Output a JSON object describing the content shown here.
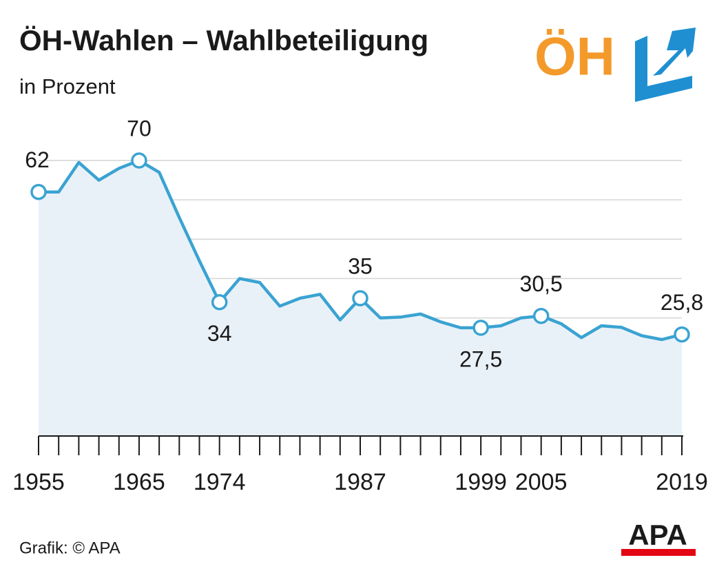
{
  "chart_data": {
    "type": "line",
    "title": "ÖH-Wahlen – Wahlbeteiligung",
    "subtitle": "in Prozent",
    "source": "Grafik: © APA",
    "logo_text": "ÖH",
    "brand": "APA",
    "categories": [
      "1955",
      null,
      null,
      null,
      null,
      "1965",
      null,
      null,
      null,
      "1974",
      null,
      null,
      null,
      null,
      null,
      null,
      "1987",
      null,
      null,
      null,
      null,
      null,
      "1999",
      null,
      null,
      "2005",
      null,
      null,
      null,
      null,
      null,
      null,
      "2019"
    ],
    "series": [
      {
        "name": "Wahlbeteiligung",
        "color": "#3aa3d2",
        "values": [
          62,
          62,
          69.5,
          65,
          68,
          70,
          67,
          55.5,
          44.5,
          34,
          40,
          39,
          33,
          35,
          36,
          29.5,
          35,
          30,
          30.2,
          31,
          29,
          27.5,
          27.5,
          28,
          30,
          30.5,
          28.5,
          25,
          28,
          27.6,
          25.5,
          24.5,
          25.8
        ],
        "value_labels": [
          "62",
          null,
          null,
          null,
          null,
          "70",
          null,
          null,
          null,
          "34",
          null,
          null,
          null,
          null,
          null,
          null,
          "35",
          null,
          null,
          null,
          null,
          null,
          "27,5",
          null,
          null,
          "30,5",
          null,
          null,
          null,
          null,
          null,
          null,
          "25,8"
        ]
      }
    ],
    "ylim": [
      0,
      70
    ],
    "yticks": [
      0,
      10,
      20,
      30,
      40,
      50,
      60,
      70
    ],
    "grid": true
  }
}
